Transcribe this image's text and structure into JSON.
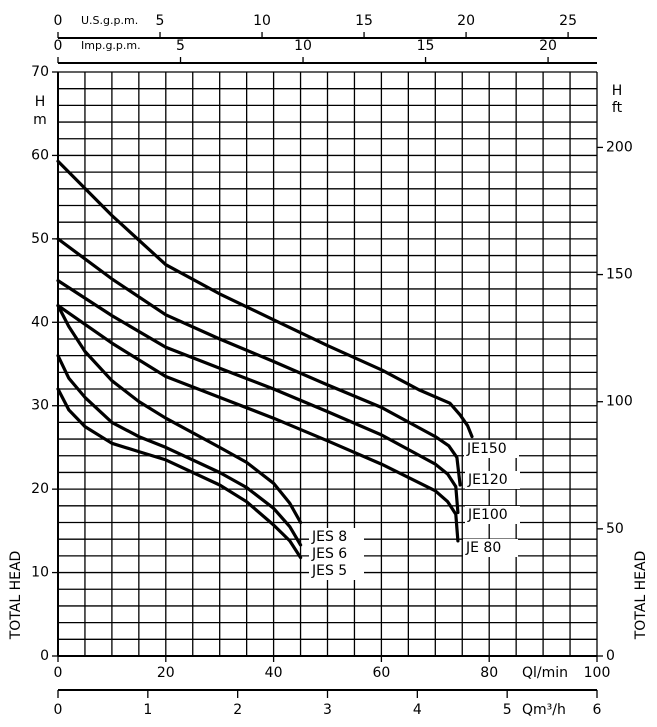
{
  "chart_data": {
    "type": "line",
    "xlabel": "Ql/min",
    "ylabel": "TOTAL HEAD",
    "ylabel_unit": "H",
    "ylabel_unit2": "m",
    "xlim": [
      0,
      100
    ],
    "xticks": [
      0,
      20,
      40,
      60,
      80,
      100
    ],
    "ylim": [
      0,
      70
    ],
    "yticks": [
      0,
      10,
      20,
      30,
      40,
      50,
      60,
      70
    ],
    "grid": true,
    "xgrid_step": 5,
    "ygrid_step": 2,
    "y2label": "TOTAL HEAD",
    "y2label_unit": "H",
    "y2label_unit2": "ft",
    "y2lim": [
      0,
      229.66
    ],
    "y2ticks": [
      0,
      50,
      100,
      150,
      200
    ],
    "x2label": "Qm³/h",
    "x2lim": [
      0,
      6
    ],
    "x2ticks": [
      0,
      1,
      2,
      3,
      4,
      5,
      6
    ],
    "top_axes": [
      {
        "label": "U.S.g.p.m.",
        "lim": [
          0,
          26.417
        ],
        "ticks": [
          0,
          5,
          10,
          15,
          20,
          25
        ]
      },
      {
        "label": "Imp.g.p.m.",
        "lim": [
          0,
          21.997
        ],
        "ticks": [
          0,
          5,
          10,
          15,
          20
        ]
      }
    ],
    "series": [
      {
        "name": "JE150",
        "color": "#000000",
        "x": [
          0,
          10,
          20,
          30,
          40,
          50,
          60,
          67,
          72.7,
          74.6,
          76,
          76.8
        ],
        "values": [
          59.3,
          52.8,
          46.9,
          43.4,
          40.3,
          37.2,
          34.3,
          31.9,
          30.3,
          28.9,
          27.6,
          26.3
        ]
      },
      {
        "name": "JE120",
        "color": "#000000",
        "x": [
          0,
          10,
          20,
          30,
          40,
          50,
          60,
          70,
          72.5,
          74,
          74.6
        ],
        "values": [
          50,
          45.2,
          40.9,
          38,
          35.3,
          32.5,
          29.8,
          26.3,
          25.2,
          23.8,
          20.5
        ]
      },
      {
        "name": "JE100",
        "color": "#000000",
        "x": [
          0,
          10,
          20,
          30,
          40,
          50,
          60,
          70,
          72.3,
          73.8,
          74.2
        ],
        "values": [
          45,
          40.8,
          37,
          34.5,
          32,
          29.3,
          26.5,
          23,
          21.8,
          20.3,
          17.2
        ]
      },
      {
        "name": "JE 80",
        "color": "#000000",
        "x": [
          0,
          10,
          20,
          30,
          40,
          50,
          60,
          70,
          72.3,
          73.8,
          74.2
        ],
        "values": [
          42,
          37.5,
          33.5,
          31,
          28.5,
          25.8,
          23,
          19.8,
          18.5,
          17,
          13.8
        ]
      },
      {
        "name": "JES 8",
        "color": "#000000",
        "x": [
          0,
          2,
          5,
          10,
          15,
          20,
          30,
          35,
          40,
          43,
          45
        ],
        "values": [
          42,
          39.5,
          36.5,
          33,
          30.5,
          28.5,
          25,
          23.2,
          20.7,
          18.3,
          16
        ]
      },
      {
        "name": "JES 6",
        "color": "#000000",
        "x": [
          0,
          2,
          5,
          10,
          15,
          20,
          30,
          35,
          40,
          43,
          45
        ],
        "values": [
          36,
          33.3,
          31,
          28,
          26.3,
          25,
          22,
          20.2,
          17.7,
          15.5,
          13.3
        ]
      },
      {
        "name": "JES 5",
        "color": "#000000",
        "x": [
          0,
          2,
          5,
          10,
          15,
          20,
          30,
          35,
          40,
          43,
          45
        ],
        "values": [
          32,
          29.5,
          27.5,
          25.5,
          24.5,
          23.5,
          20.5,
          18.5,
          15.7,
          13.8,
          11.8
        ]
      }
    ]
  }
}
